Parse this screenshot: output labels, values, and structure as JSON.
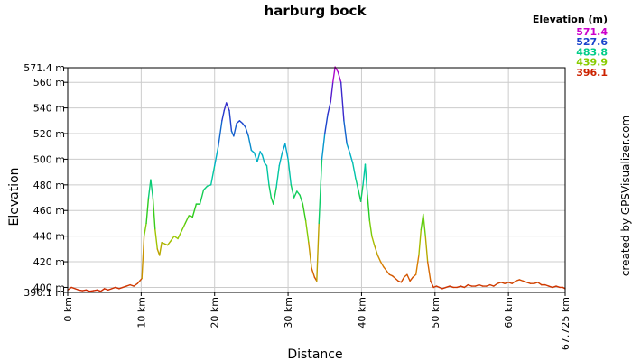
{
  "chart_data": {
    "type": "line",
    "title": "harburg bock",
    "xlabel": "Distance",
    "ylabel": "Elevation",
    "credit": "created by GPSVisualizer.com",
    "xlim": [
      0,
      67.725
    ],
    "ylim": [
      396.1,
      571.4
    ],
    "grid": true,
    "x_ticks": [
      {
        "value": 0,
        "label": "0 km"
      },
      {
        "value": 10,
        "label": "10 km"
      },
      {
        "value": 20,
        "label": "20 km"
      },
      {
        "value": 30,
        "label": "30 km"
      },
      {
        "value": 40,
        "label": "40 km"
      },
      {
        "value": 50,
        "label": "50 km"
      },
      {
        "value": 60,
        "label": "60 km"
      },
      {
        "value": 67.725,
        "label": "67.725 km"
      }
    ],
    "y_ticks": [
      {
        "value": 396.1,
        "label": "396.1 m"
      },
      {
        "value": 400,
        "label": "400 m"
      },
      {
        "value": 420,
        "label": "420 m"
      },
      {
        "value": 440,
        "label": "440 m"
      },
      {
        "value": 460,
        "label": "460 m"
      },
      {
        "value": 480,
        "label": "480 m"
      },
      {
        "value": 500,
        "label": "500 m"
      },
      {
        "value": 520,
        "label": "520 m"
      },
      {
        "value": 540,
        "label": "540 m"
      },
      {
        "value": 560,
        "label": "560 m"
      },
      {
        "value": 571.4,
        "label": "571.4 m"
      }
    ],
    "legend": {
      "title": "Elevation (m)",
      "placement": "top-right",
      "entries": [
        {
          "label": "571.4",
          "color": "#cc00cc"
        },
        {
          "label": "527.6",
          "color": "#1a44cc"
        },
        {
          "label": "483.8",
          "color": "#00cc88"
        },
        {
          "label": "439.9",
          "color": "#88cc00"
        },
        {
          "label": "396.1",
          "color": "#cc2200"
        }
      ]
    },
    "color_scale": [
      {
        "value": 396.1,
        "color": "#cc2200"
      },
      {
        "value": 418.0,
        "color": "#d98000"
      },
      {
        "value": 439.9,
        "color": "#99cc00"
      },
      {
        "value": 461.8,
        "color": "#22cc22"
      },
      {
        "value": 483.8,
        "color": "#00cc99"
      },
      {
        "value": 505.7,
        "color": "#00aacc"
      },
      {
        "value": 527.6,
        "color": "#1a44cc"
      },
      {
        "value": 549.5,
        "color": "#4422cc"
      },
      {
        "value": 571.4,
        "color": "#cc00cc"
      }
    ],
    "series": [
      {
        "x": [
          0,
          0.5,
          1.0,
          1.5,
          2.0,
          2.5,
          3.0,
          3.5,
          4.0,
          4.5,
          5.0,
          5.5,
          6.0,
          6.5,
          7.0,
          7.5,
          8.0,
          8.5,
          9.0,
          9.5,
          9.8,
          10.1,
          10.4,
          10.7,
          11.0,
          11.3,
          11.6,
          11.9,
          12.2,
          12.5,
          12.8,
          13.2,
          13.6,
          14.0,
          14.5,
          15.0,
          15.5,
          16.0,
          16.5,
          17.0,
          17.5,
          18.0,
          18.5,
          19.0,
          19.5,
          20.0,
          20.5,
          21.0,
          21.3,
          21.6,
          22.0,
          22.3,
          22.6,
          23.0,
          23.4,
          23.8,
          24.2,
          24.6,
          25.0,
          25.4,
          25.8,
          26.2,
          26.5,
          26.8,
          27.1,
          27.4,
          27.7,
          28.0,
          28.4,
          28.8,
          29.2,
          29.6,
          30.0,
          30.4,
          30.8,
          31.2,
          31.6,
          32.0,
          32.4,
          32.8,
          33.2,
          33.6,
          33.9,
          34.2,
          34.6,
          35.0,
          35.4,
          35.8,
          36.1,
          36.4,
          36.8,
          37.2,
          37.6,
          38.0,
          38.4,
          38.8,
          39.2,
          39.6,
          39.9,
          40.2,
          40.5,
          40.8,
          41.1,
          41.4,
          41.8,
          42.2,
          42.6,
          43.0,
          43.4,
          43.8,
          44.2,
          44.6,
          45.0,
          45.4,
          45.8,
          46.2,
          46.6,
          47.0,
          47.4,
          47.8,
          48.1,
          48.4,
          48.7,
          49.0,
          49.4,
          49.8,
          50.2,
          50.6,
          51.0,
          51.5,
          52.0,
          52.5,
          53.0,
          53.5,
          54.0,
          54.5,
          55.0,
          55.5,
          56.0,
          56.5,
          57.0,
          57.5,
          58.0,
          58.5,
          59.0,
          59.5,
          60.0,
          60.5,
          61.0,
          61.5,
          62.0,
          62.5,
          63.0,
          63.5,
          64.0,
          64.5,
          65.0,
          65.5,
          66.0,
          66.5,
          67.0,
          67.4,
          67.725
        ],
        "y": [
          398,
          400,
          399,
          398,
          397.5,
          398,
          397,
          397.5,
          398,
          397,
          399,
          398,
          399,
          400,
          399,
          400,
          401,
          402,
          401,
          403,
          405,
          407,
          440,
          450,
          470,
          484,
          470,
          445,
          430,
          425,
          435,
          434,
          433,
          436,
          440,
          438,
          444,
          450,
          456,
          455,
          465,
          465,
          476,
          479,
          480,
          495,
          510,
          530,
          538,
          544,
          538,
          522,
          518,
          528,
          530,
          528,
          525,
          518,
          507,
          505,
          498,
          506,
          503,
          497,
          495,
          480,
          470,
          465,
          478,
          495,
          505,
          512,
          500,
          480,
          470,
          475,
          472,
          465,
          452,
          435,
          415,
          408,
          405,
          450,
          500,
          520,
          535,
          545,
          560,
          572,
          568,
          560,
          530,
          512,
          505,
          497,
          485,
          475,
          467,
          480,
          496,
          472,
          452,
          440,
          432,
          425,
          420,
          416,
          413,
          410,
          409,
          407,
          405,
          404,
          408,
          410,
          405,
          408,
          410,
          425,
          445,
          457,
          440,
          420,
          405,
          400,
          401,
          400,
          399,
          400,
          401,
          400,
          400,
          401,
          400,
          402,
          401,
          401,
          402,
          401,
          401,
          402,
          401,
          403,
          404,
          403,
          404,
          403,
          405,
          406,
          405,
          404,
          403,
          403,
          404,
          402,
          402,
          401,
          400,
          401,
          400,
          400,
          399
        ]
      }
    ]
  }
}
